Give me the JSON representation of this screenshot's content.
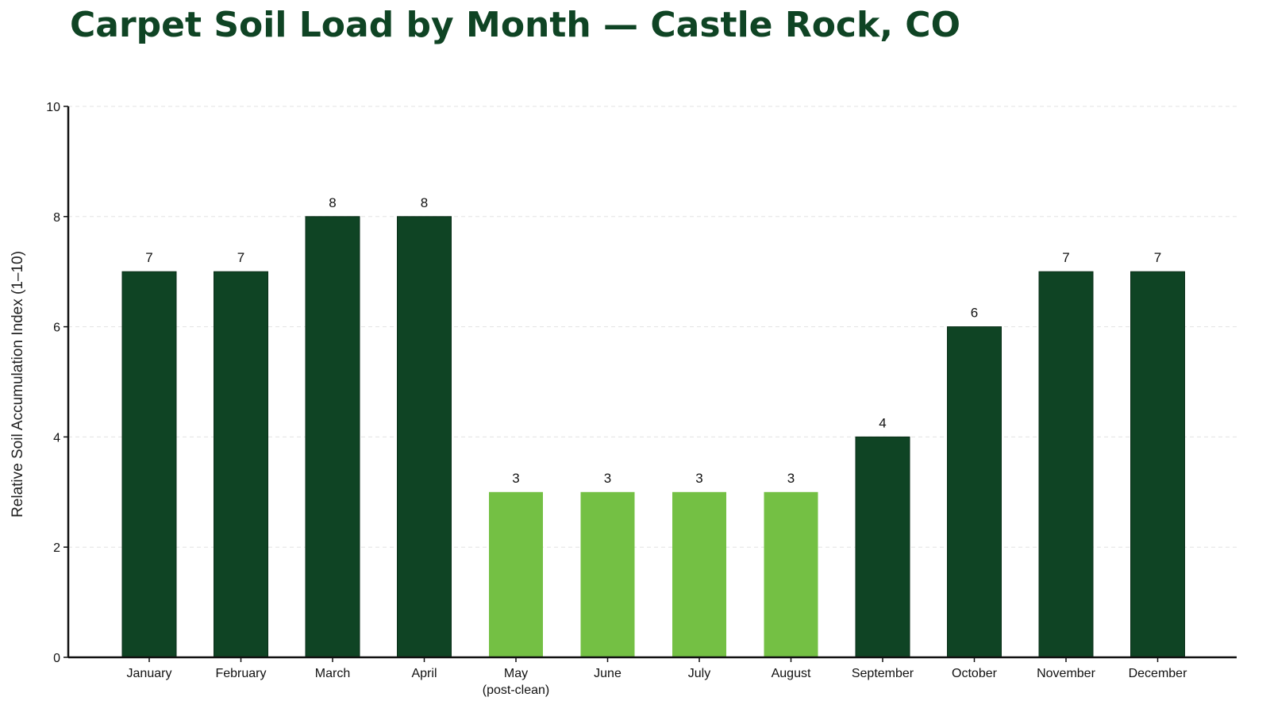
{
  "chart_data": {
    "type": "bar",
    "title": "Carpet Soil Load by Month — Castle Rock, CO",
    "xlabel": "",
    "ylabel": "Relative Soil Accumulation Index (1–10)",
    "ylim": [
      0,
      10
    ],
    "yticks": [
      0,
      2,
      4,
      6,
      8,
      10
    ],
    "grid": "horizontal-dashed",
    "categories": [
      [
        "January"
      ],
      [
        "February"
      ],
      [
        "March"
      ],
      [
        "April"
      ],
      [
        "May",
        "(post-clean)"
      ],
      [
        "June"
      ],
      [
        "July"
      ],
      [
        "August"
      ],
      [
        "September"
      ],
      [
        "October"
      ],
      [
        "November"
      ],
      [
        "December"
      ]
    ],
    "values": [
      7,
      7,
      8,
      8,
      3,
      3,
      3,
      3,
      4,
      6,
      7,
      7
    ],
    "value_labels": [
      "7",
      "7",
      "8",
      "8",
      "3",
      "3",
      "3",
      "3",
      "4",
      "6",
      "7",
      "7"
    ],
    "highlighted": [
      false,
      false,
      false,
      false,
      true,
      true,
      true,
      true,
      false,
      false,
      false,
      false
    ],
    "colors": {
      "bar": "#0f4424",
      "highlight": "#74c044",
      "title": "#0f4424",
      "grid": "#e3e3e3",
      "axis": "#111111"
    }
  }
}
